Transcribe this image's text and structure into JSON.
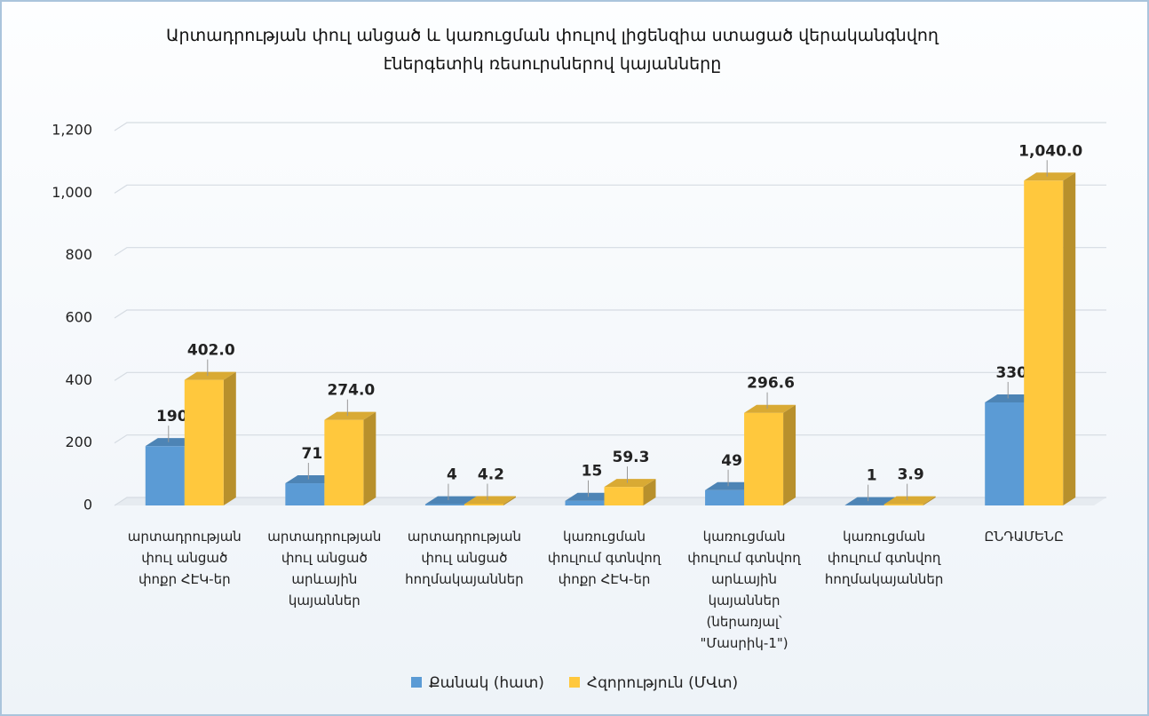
{
  "chart_data": {
    "type": "bar3d",
    "title": "Արտադրության փուլ անցած և կառուցման փուլով լիցենզիա ստացած վերականգնվող էներգետիկ ռեսուրսներով կայանները",
    "categories": [
      "արտադրության փուլ անցած փոքր ՀԷԿ-եր",
      "արտադրության փուլ անցած արևային կայաններ",
      "արտադրության փուլ անցած հողմակայաններ",
      "կառուցման փուլում գտնվող փոքր ՀԷԿ-եր",
      "կառուցման փուլում գտնվող արևային կայաններ (ներառյալ՝ \"Մասրիկ-1\")",
      "կառուցման փուլում գտնվող հողմակայաններ",
      "ԸՆԴԱՄԵՆԸ"
    ],
    "series": [
      {
        "name": "Քանակ (հատ)",
        "color": "#5b9bd5",
        "values": [
          190,
          71,
          4,
          15,
          49,
          1,
          330
        ]
      },
      {
        "name": "Հզորություն (ՄՎտ)",
        "color": "#ffc83d",
        "values": [
          402,
          274,
          4.2,
          59.3,
          296.6,
          3.9,
          1040
        ],
        "value_labels": [
          "402.0",
          "274.0",
          "4.2",
          "59.3",
          "296.6",
          "3.9",
          "1,040.0"
        ]
      }
    ],
    "ylim": [
      0,
      1200
    ],
    "yticks": [
      0,
      200,
      400,
      600,
      800,
      {
        "value": 1000,
        "label": "1,000"
      },
      {
        "value": 1200,
        "label": "1,200"
      }
    ],
    "grid": true,
    "legend": "bottom"
  }
}
